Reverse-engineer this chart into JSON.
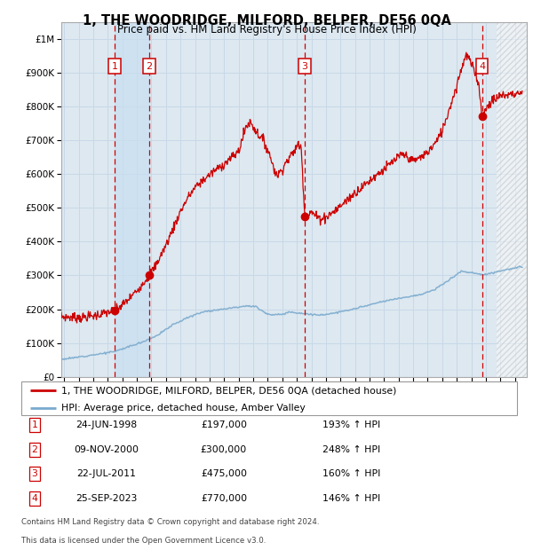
{
  "title": "1, THE WOODRIDGE, MILFORD, BELPER, DE56 0QA",
  "subtitle": "Price paid vs. HM Land Registry's House Price Index (HPI)",
  "ylim": [
    0,
    1050000
  ],
  "yticks": [
    0,
    100000,
    200000,
    300000,
    400000,
    500000,
    600000,
    700000,
    800000,
    900000,
    1000000
  ],
  "ytick_labels": [
    "£0",
    "£100K",
    "£200K",
    "£300K",
    "£400K",
    "£500K",
    "£600K",
    "£700K",
    "£800K",
    "£900K",
    "£1M"
  ],
  "xlim_start": 1994.8,
  "xlim_end": 2026.8,
  "grid_color": "#c8d8e8",
  "bg_color": "#dde8f0",
  "sale_color": "#cc0000",
  "hpi_color": "#7aaace",
  "purchases": [
    {
      "num": 1,
      "year": 1998.47,
      "price": 197000
    },
    {
      "num": 2,
      "year": 2000.85,
      "price": 300000
    },
    {
      "num": 3,
      "year": 2011.55,
      "price": 475000
    },
    {
      "num": 4,
      "year": 2023.73,
      "price": 770000
    }
  ],
  "legend_line1": "1, THE WOODRIDGE, MILFORD, BELPER, DE56 0QA (detached house)",
  "legend_line2": "HPI: Average price, detached house, Amber Valley",
  "table_rows": [
    {
      "num": "1",
      "date": "24-JUN-1998",
      "price": "£197,000",
      "pct": "193% ↑ HPI"
    },
    {
      "num": "2",
      "date": "09-NOV-2000",
      "price": "£300,000",
      "pct": "248% ↑ HPI"
    },
    {
      "num": "3",
      "date": "22-JUL-2011",
      "price": "£475,000",
      "pct": "160% ↑ HPI"
    },
    {
      "num": "4",
      "date": "25-SEP-2023",
      "price": "£770,000",
      "pct": "146% ↑ HPI"
    }
  ],
  "footnote1": "Contains HM Land Registry data © Crown copyright and database right 2024.",
  "footnote2": "This data is licensed under the Open Government Licence v3.0.",
  "hatch_start": 2024.75
}
